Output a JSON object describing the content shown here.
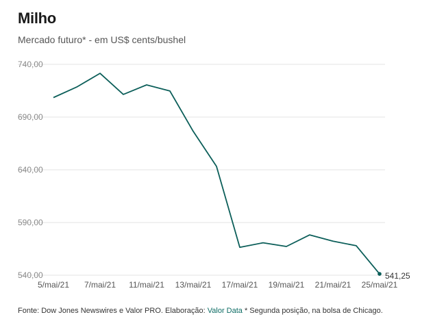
{
  "chart_data": {
    "type": "line",
    "title": "Milho",
    "subtitle": "Mercado futuro* - em US$ cents/bushel",
    "x": [
      "5/mai/21",
      "6/mai/21",
      "7/mai/21",
      "10/mai/21",
      "11/mai/21",
      "12/mai/21",
      "13/mai/21",
      "14/mai/21",
      "17/mai/21",
      "18/mai/21",
      "19/mai/21",
      "20/mai/21",
      "21/mai/21",
      "24/mai/21",
      "25/mai/21"
    ],
    "xticks": [
      "5/mai/21",
      "7/mai/21",
      "11/mai/21",
      "13/mai/21",
      "17/mai/21",
      "19/mai/21",
      "21/mai/21",
      "25/mai/21"
    ],
    "series": [
      {
        "values": [
          708.5,
          718.5,
          731.5,
          711.5,
          720.5,
          714.75,
          676.5,
          643.25,
          566.5,
          570.75,
          567.25,
          578.25,
          572.25,
          568.0,
          541.25
        ]
      }
    ],
    "yticks": [
      "740,00",
      "690,00",
      "640,00",
      "590,00",
      "540,00"
    ],
    "ylim": [
      540,
      740
    ],
    "grid": true,
    "end_label": "541,25",
    "line_color": "#0b5e59"
  },
  "footer": {
    "source_prefix": "Fonte: Dow Jones Newswires e Valor PRO. Elaboração: ",
    "source_brand": "Valor Data",
    "source_suffix": " * Segunda posição, na bolsa de Chicago."
  }
}
